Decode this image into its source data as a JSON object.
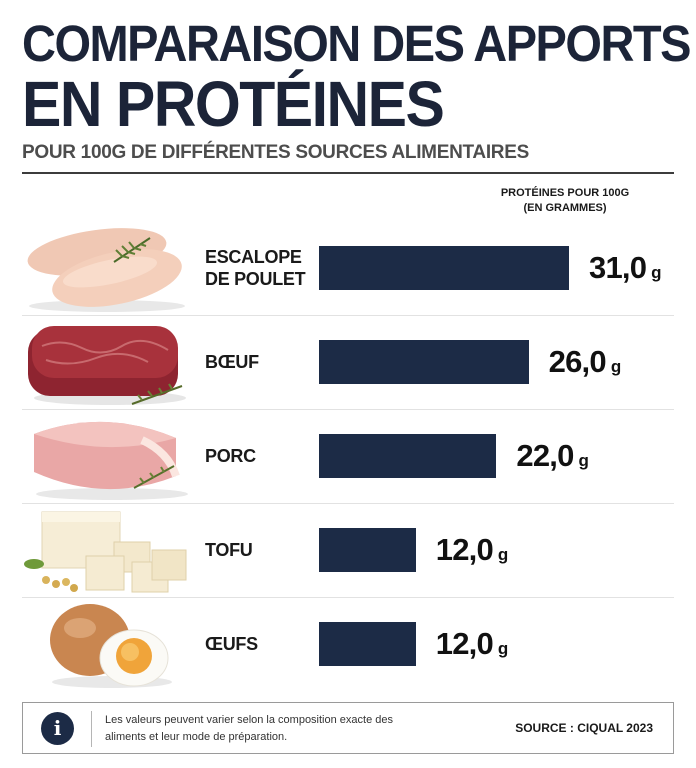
{
  "header": {
    "title_line1": "COMPARAISON DES APPORTS",
    "title_line2": "EN PROTÉINES",
    "subtitle": "POUR 100G DE DIFFÉRENTES SOURCES ALIMENTAIRES",
    "column_header_line1": "PROTÉINES POUR 100G",
    "column_header_line2": "(EN GRAMMES)"
  },
  "colors": {
    "bar": "#1c2b46",
    "title": "#1c2438"
  },
  "chart_data": {
    "type": "bar",
    "orientation": "horizontal",
    "categories": [
      "ESCALOPE DE POULET",
      "BŒUF",
      "PORC",
      "TOFU",
      "ŒUFS"
    ],
    "category_lines": [
      [
        "ESCALOPE",
        "DE POULET"
      ],
      [
        "BŒUF"
      ],
      [
        "PORC"
      ],
      [
        "TOFU"
      ],
      [
        "ŒUFS"
      ]
    ],
    "values": [
      31.0,
      26.0,
      22.0,
      12.0,
      12.0
    ],
    "value_labels": [
      "31,0",
      "26,0",
      "22,0",
      "12,0",
      "12,0"
    ],
    "unit": "g",
    "icons": [
      "chicken-breast-image",
      "beef-steak-image",
      "pork-loin-image",
      "tofu-cubes-image",
      "boiled-egg-image"
    ]
  },
  "footer": {
    "icon": "info-icon",
    "note": "Les valeurs peuvent varier selon la composition exacte des aliments et leur mode de préparation.",
    "source": "SOURCE : CIQUAL 2023"
  }
}
